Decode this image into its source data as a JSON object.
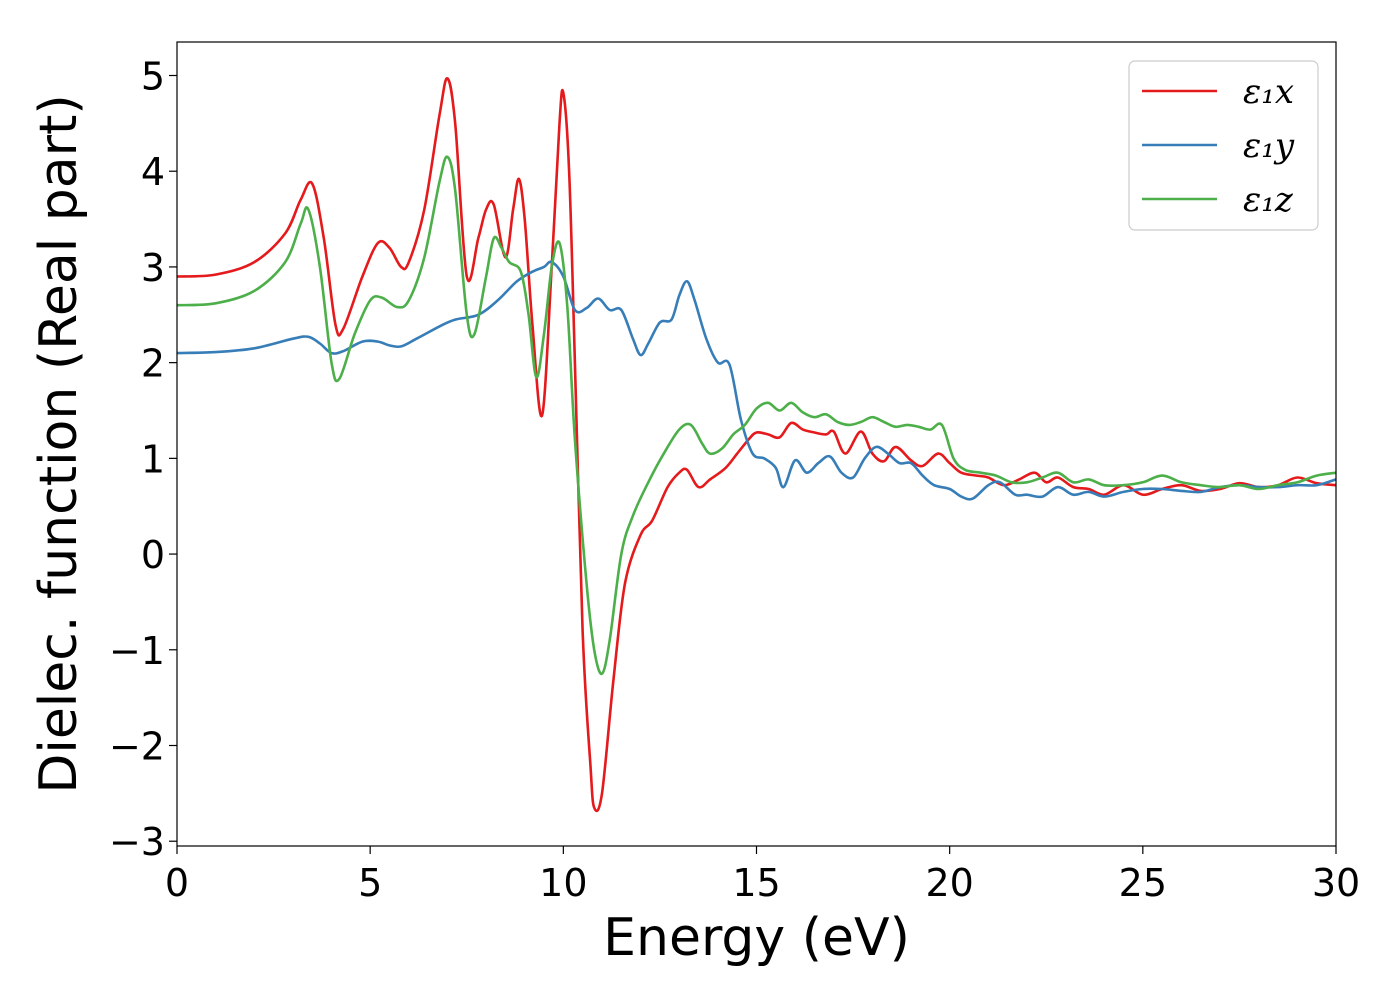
{
  "chart_data": {
    "type": "line",
    "xlabel": "Energy (eV)",
    "ylabel": "Dielec. function (Real part)",
    "xlim": [
      0,
      30
    ],
    "ylim": [
      -3.05,
      5.35
    ],
    "xticks": [
      0,
      5,
      10,
      15,
      20,
      25,
      30
    ],
    "xtick_labels": [
      "0",
      "5",
      "10",
      "15",
      "20",
      "25",
      "30"
    ],
    "yticks": [
      -3,
      -2,
      -1,
      0,
      1,
      2,
      3,
      4,
      5
    ],
    "ytick_labels": [
      "−3",
      "−2",
      "−1",
      "0",
      "1",
      "2",
      "3",
      "4",
      "5"
    ],
    "grid": false,
    "legend_position": "top-right",
    "series": [
      {
        "name": "ε₁x",
        "color": "#e41a1c",
        "points": [
          [
            0,
            2.9
          ],
          [
            1,
            2.92
          ],
          [
            2,
            3.05
          ],
          [
            2.8,
            3.35
          ],
          [
            3.2,
            3.7
          ],
          [
            3.5,
            3.87
          ],
          [
            3.8,
            3.3
          ],
          [
            4.1,
            2.4
          ],
          [
            4.3,
            2.35
          ],
          [
            4.8,
            2.9
          ],
          [
            5.2,
            3.25
          ],
          [
            5.5,
            3.2
          ],
          [
            5.8,
            3.0
          ],
          [
            6.0,
            3.05
          ],
          [
            6.4,
            3.6
          ],
          [
            6.8,
            4.6
          ],
          [
            7.0,
            4.97
          ],
          [
            7.2,
            4.5
          ],
          [
            7.5,
            2.9
          ],
          [
            7.8,
            3.3
          ],
          [
            8.0,
            3.6
          ],
          [
            8.2,
            3.65
          ],
          [
            8.5,
            3.1
          ],
          [
            8.7,
            3.6
          ],
          [
            8.85,
            3.92
          ],
          [
            9.0,
            3.5
          ],
          [
            9.2,
            2.4
          ],
          [
            9.45,
            1.45
          ],
          [
            9.7,
            3.0
          ],
          [
            9.9,
            4.5
          ],
          [
            10.0,
            4.82
          ],
          [
            10.15,
            4.0
          ],
          [
            10.3,
            2.0
          ],
          [
            10.5,
            -0.8
          ],
          [
            10.7,
            -2.2
          ],
          [
            10.8,
            -2.65
          ],
          [
            11.0,
            -2.5
          ],
          [
            11.3,
            -1.3
          ],
          [
            11.6,
            -0.3
          ],
          [
            12.0,
            0.2
          ],
          [
            12.3,
            0.35
          ],
          [
            12.7,
            0.7
          ],
          [
            13.0,
            0.85
          ],
          [
            13.2,
            0.88
          ],
          [
            13.5,
            0.7
          ],
          [
            13.8,
            0.78
          ],
          [
            14.2,
            0.9
          ],
          [
            14.5,
            1.05
          ],
          [
            14.8,
            1.2
          ],
          [
            15.0,
            1.27
          ],
          [
            15.3,
            1.25
          ],
          [
            15.6,
            1.22
          ],
          [
            15.9,
            1.37
          ],
          [
            16.2,
            1.3
          ],
          [
            16.5,
            1.27
          ],
          [
            16.8,
            1.25
          ],
          [
            17.0,
            1.28
          ],
          [
            17.3,
            1.05
          ],
          [
            17.7,
            1.28
          ],
          [
            18.0,
            1.05
          ],
          [
            18.3,
            0.97
          ],
          [
            18.6,
            1.12
          ],
          [
            19.0,
            0.98
          ],
          [
            19.3,
            0.92
          ],
          [
            19.7,
            1.05
          ],
          [
            20.0,
            0.95
          ],
          [
            20.3,
            0.85
          ],
          [
            20.7,
            0.82
          ],
          [
            21.0,
            0.8
          ],
          [
            21.4,
            0.72
          ],
          [
            21.8,
            0.78
          ],
          [
            22.2,
            0.85
          ],
          [
            22.5,
            0.75
          ],
          [
            22.8,
            0.8
          ],
          [
            23.2,
            0.7
          ],
          [
            23.6,
            0.68
          ],
          [
            24.0,
            0.62
          ],
          [
            24.5,
            0.72
          ],
          [
            25.0,
            0.62
          ],
          [
            25.5,
            0.68
          ],
          [
            26.0,
            0.72
          ],
          [
            26.5,
            0.66
          ],
          [
            27.0,
            0.68
          ],
          [
            27.5,
            0.74
          ],
          [
            28.0,
            0.7
          ],
          [
            28.5,
            0.72
          ],
          [
            29.0,
            0.8
          ],
          [
            29.5,
            0.74
          ],
          [
            30.0,
            0.72
          ]
        ]
      },
      {
        "name": "ε₁y",
        "color": "#377eb8",
        "points": [
          [
            0,
            2.1
          ],
          [
            1,
            2.11
          ],
          [
            2,
            2.15
          ],
          [
            3,
            2.25
          ],
          [
            3.4,
            2.27
          ],
          [
            3.7,
            2.2
          ],
          [
            4.0,
            2.1
          ],
          [
            4.3,
            2.12
          ],
          [
            4.8,
            2.22
          ],
          [
            5.2,
            2.22
          ],
          [
            5.5,
            2.18
          ],
          [
            5.8,
            2.17
          ],
          [
            6.2,
            2.25
          ],
          [
            6.8,
            2.38
          ],
          [
            7.2,
            2.45
          ],
          [
            7.8,
            2.5
          ],
          [
            8.3,
            2.65
          ],
          [
            8.8,
            2.85
          ],
          [
            9.2,
            2.95
          ],
          [
            9.5,
            3.0
          ],
          [
            9.7,
            3.05
          ],
          [
            10.0,
            2.9
          ],
          [
            10.3,
            2.55
          ],
          [
            10.6,
            2.57
          ],
          [
            10.9,
            2.67
          ],
          [
            11.2,
            2.55
          ],
          [
            11.5,
            2.55
          ],
          [
            11.8,
            2.25
          ],
          [
            12.0,
            2.08
          ],
          [
            12.2,
            2.2
          ],
          [
            12.5,
            2.42
          ],
          [
            12.8,
            2.45
          ],
          [
            13.0,
            2.7
          ],
          [
            13.2,
            2.85
          ],
          [
            13.4,
            2.65
          ],
          [
            13.7,
            2.25
          ],
          [
            14.0,
            2.0
          ],
          [
            14.3,
            1.98
          ],
          [
            14.6,
            1.4
          ],
          [
            14.9,
            1.05
          ],
          [
            15.2,
            1.0
          ],
          [
            15.5,
            0.9
          ],
          [
            15.7,
            0.7
          ],
          [
            16.0,
            0.98
          ],
          [
            16.3,
            0.85
          ],
          [
            16.6,
            0.95
          ],
          [
            16.9,
            1.02
          ],
          [
            17.2,
            0.85
          ],
          [
            17.5,
            0.8
          ],
          [
            17.8,
            1.0
          ],
          [
            18.1,
            1.12
          ],
          [
            18.4,
            1.05
          ],
          [
            18.7,
            0.95
          ],
          [
            19.0,
            0.95
          ],
          [
            19.3,
            0.82
          ],
          [
            19.6,
            0.72
          ],
          [
            20.0,
            0.68
          ],
          [
            20.3,
            0.6
          ],
          [
            20.6,
            0.58
          ],
          [
            21.0,
            0.72
          ],
          [
            21.3,
            0.75
          ],
          [
            21.7,
            0.62
          ],
          [
            22.0,
            0.62
          ],
          [
            22.4,
            0.6
          ],
          [
            22.8,
            0.7
          ],
          [
            23.2,
            0.62
          ],
          [
            23.6,
            0.65
          ],
          [
            24.0,
            0.6
          ],
          [
            24.5,
            0.65
          ],
          [
            25.0,
            0.68
          ],
          [
            25.5,
            0.68
          ],
          [
            26.0,
            0.66
          ],
          [
            26.5,
            0.65
          ],
          [
            27.0,
            0.7
          ],
          [
            27.5,
            0.72
          ],
          [
            28.0,
            0.7
          ],
          [
            28.5,
            0.7
          ],
          [
            29.0,
            0.72
          ],
          [
            29.5,
            0.72
          ],
          [
            30.0,
            0.78
          ]
        ]
      },
      {
        "name": "ε₁z",
        "color": "#4daf4a",
        "points": [
          [
            0,
            2.6
          ],
          [
            1,
            2.62
          ],
          [
            2,
            2.75
          ],
          [
            2.8,
            3.05
          ],
          [
            3.2,
            3.45
          ],
          [
            3.4,
            3.6
          ],
          [
            3.7,
            3.0
          ],
          [
            4.0,
            2.0
          ],
          [
            4.2,
            1.83
          ],
          [
            4.6,
            2.3
          ],
          [
            5.0,
            2.65
          ],
          [
            5.3,
            2.68
          ],
          [
            5.7,
            2.58
          ],
          [
            6.0,
            2.65
          ],
          [
            6.4,
            3.1
          ],
          [
            6.8,
            3.9
          ],
          [
            7.0,
            4.15
          ],
          [
            7.2,
            3.8
          ],
          [
            7.5,
            2.5
          ],
          [
            7.7,
            2.3
          ],
          [
            8.0,
            2.9
          ],
          [
            8.2,
            3.3
          ],
          [
            8.4,
            3.2
          ],
          [
            8.6,
            3.05
          ],
          [
            8.9,
            2.95
          ],
          [
            9.1,
            2.5
          ],
          [
            9.3,
            1.85
          ],
          [
            9.5,
            2.3
          ],
          [
            9.7,
            3.0
          ],
          [
            9.9,
            3.25
          ],
          [
            10.1,
            2.6
          ],
          [
            10.3,
            1.2
          ],
          [
            10.6,
            -0.3
          ],
          [
            10.8,
            -1.0
          ],
          [
            11.0,
            -1.25
          ],
          [
            11.2,
            -0.9
          ],
          [
            11.5,
            0.0
          ],
          [
            11.8,
            0.4
          ],
          [
            12.2,
            0.75
          ],
          [
            12.6,
            1.05
          ],
          [
            13.0,
            1.3
          ],
          [
            13.3,
            1.35
          ],
          [
            13.6,
            1.15
          ],
          [
            13.8,
            1.05
          ],
          [
            14.1,
            1.1
          ],
          [
            14.4,
            1.25
          ],
          [
            14.7,
            1.35
          ],
          [
            15.0,
            1.52
          ],
          [
            15.3,
            1.58
          ],
          [
            15.6,
            1.5
          ],
          [
            15.9,
            1.58
          ],
          [
            16.2,
            1.48
          ],
          [
            16.5,
            1.43
          ],
          [
            16.8,
            1.46
          ],
          [
            17.1,
            1.38
          ],
          [
            17.4,
            1.35
          ],
          [
            17.7,
            1.38
          ],
          [
            18.0,
            1.43
          ],
          [
            18.3,
            1.38
          ],
          [
            18.6,
            1.33
          ],
          [
            18.9,
            1.35
          ],
          [
            19.2,
            1.33
          ],
          [
            19.5,
            1.3
          ],
          [
            19.8,
            1.35
          ],
          [
            20.1,
            1.0
          ],
          [
            20.4,
            0.88
          ],
          [
            20.8,
            0.85
          ],
          [
            21.2,
            0.82
          ],
          [
            21.6,
            0.75
          ],
          [
            22.0,
            0.75
          ],
          [
            22.4,
            0.8
          ],
          [
            22.8,
            0.85
          ],
          [
            23.2,
            0.75
          ],
          [
            23.6,
            0.78
          ],
          [
            24.0,
            0.72
          ],
          [
            24.5,
            0.72
          ],
          [
            25.0,
            0.75
          ],
          [
            25.5,
            0.82
          ],
          [
            26.0,
            0.75
          ],
          [
            26.5,
            0.72
          ],
          [
            27.0,
            0.7
          ],
          [
            27.5,
            0.72
          ],
          [
            28.0,
            0.68
          ],
          [
            28.5,
            0.72
          ],
          [
            29.0,
            0.75
          ],
          [
            29.5,
            0.82
          ],
          [
            30.0,
            0.85
          ]
        ]
      }
    ]
  }
}
